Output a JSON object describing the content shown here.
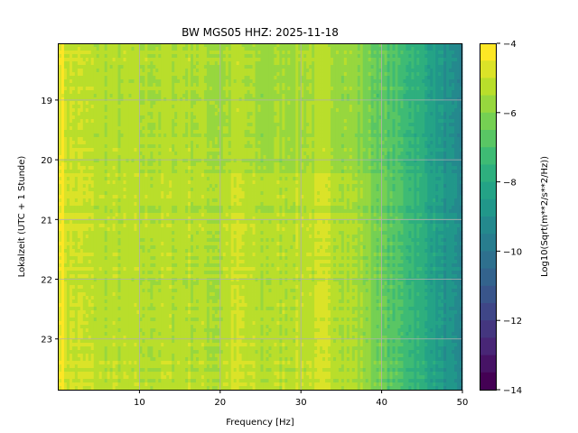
{
  "chart_data": {
    "type": "heatmap",
    "title": "BW MGS05  HHZ: 2025-11-18",
    "xlabel": "Frequency [Hz]",
    "ylabel": "Lokalzeit (UTC + 1 Stunde)",
    "colorbar_label": "Log10(Sqrt(m**2/s**2/Hz))",
    "xlim": [
      0,
      50
    ],
    "ylim": [
      18.05,
      23.85
    ],
    "y_inverted": true,
    "clim": [
      -14,
      -4
    ],
    "colormap": "viridis",
    "colorbar_levels": 20,
    "grid": true,
    "xticks": [
      10,
      20,
      30,
      40,
      50
    ],
    "yticks": [
      19,
      20,
      21,
      22,
      23
    ],
    "colorbar_ticks": [
      -4,
      -6,
      -8,
      -10,
      -12,
      -14
    ],
    "frequency_profile": {
      "frequencies": [
        0,
        0.5,
        1,
        3,
        5,
        10,
        15,
        20,
        22,
        25,
        30,
        33,
        36,
        38,
        40,
        42,
        44,
        46,
        48,
        50
      ],
      "levels": [
        -4.3,
        -4.5,
        -5.0,
        -5.1,
        -5.3,
        -5.4,
        -5.3,
        -5.5,
        -5.2,
        -5.6,
        -5.4,
        -5.3,
        -5.6,
        -6.0,
        -6.6,
        -7.0,
        -7.5,
        -8.2,
        -8.9,
        -9.6
      ]
    },
    "time_segments": [
      {
        "start": 18.05,
        "end": 20.2,
        "offset": -0.1
      },
      {
        "start": 20.2,
        "end": 21.0,
        "offset": 0.15
      },
      {
        "start": 21.0,
        "end": 23.85,
        "offset": 0.25
      }
    ]
  }
}
